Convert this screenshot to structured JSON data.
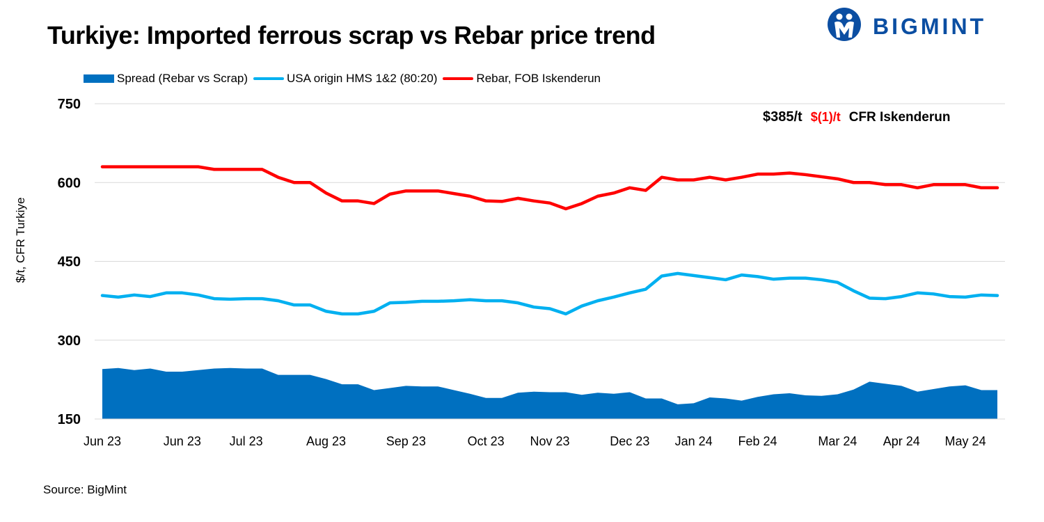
{
  "title": "Turkiye: Imported ferrous scrap vs Rebar price trend",
  "brand": {
    "name": "BIGMINT",
    "color": "#0b4ea2",
    "icon": "people-logo-icon"
  },
  "annotation": {
    "price": "$385/t",
    "change": "$(1)/t",
    "location": "CFR Iskenderun"
  },
  "source": "Source: BigMint",
  "colors": {
    "spread": "#0070c0",
    "scrap": "#00b0f0",
    "rebar": "#ff0000",
    "grid": "#d9d9d9"
  },
  "legend": [
    {
      "label": "Spread (Rebar vs Scrap)",
      "color": "#0070c0",
      "kind": "box"
    },
    {
      "label": "USA origin HMS 1&2 (80:20)",
      "color": "#00b0f0",
      "kind": "line"
    },
    {
      "label": "Rebar, FOB Iskenderun",
      "color": "#ff0000",
      "kind": "line"
    }
  ],
  "chart_data": {
    "type": "line",
    "title": "Turkiye: Imported ferrous scrap vs Rebar price trend",
    "ylabel": "$/t, CFR Turkiye",
    "xlabel": "",
    "ylim": [
      150,
      750
    ],
    "yticks": [
      150,
      300,
      450,
      600,
      750
    ],
    "grid": true,
    "legend_position": "top",
    "x_tick_labels": [
      {
        "index": 0,
        "label": "Jun 23"
      },
      {
        "index": 5,
        "label": "Jun 23"
      },
      {
        "index": 9,
        "label": "Jul 23"
      },
      {
        "index": 14,
        "label": "Aug 23"
      },
      {
        "index": 19,
        "label": "Sep 23"
      },
      {
        "index": 24,
        "label": "Oct 23"
      },
      {
        "index": 28,
        "label": "Nov 23"
      },
      {
        "index": 33,
        "label": "Dec 23"
      },
      {
        "index": 37,
        "label": "Jan 24"
      },
      {
        "index": 41,
        "label": "Feb 24"
      },
      {
        "index": 46,
        "label": "Mar 24"
      },
      {
        "index": 50,
        "label": "Apr 24"
      },
      {
        "index": 54,
        "label": "May 24"
      }
    ],
    "series": [
      {
        "name": "Spread (Rebar vs Scrap)",
        "type": "area",
        "values": [
          245,
          247,
          243,
          246,
          240,
          240,
          243,
          246,
          247,
          246,
          246,
          234,
          234,
          234,
          226,
          216,
          216,
          205,
          209,
          213,
          212,
          212,
          205,
          198,
          190,
          190,
          200,
          202,
          201,
          201,
          196,
          200,
          198,
          201,
          189,
          189,
          178,
          180,
          191,
          189,
          185,
          192,
          197,
          199,
          195,
          194,
          197,
          206,
          221,
          217,
          213,
          202,
          207,
          212,
          214,
          205,
          205
        ]
      },
      {
        "name": "USA origin HMS 1&2 (80:20)",
        "type": "line",
        "values": [
          385,
          382,
          386,
          383,
          390,
          390,
          386,
          379,
          378,
          379,
          379,
          375,
          367,
          367,
          355,
          350,
          350,
          355,
          371,
          372,
          374,
          374,
          375,
          377,
          375,
          375,
          371,
          363,
          360,
          350,
          365,
          375,
          382,
          390,
          397,
          422,
          427,
          423,
          419,
          415,
          424,
          421,
          416,
          418,
          418,
          415,
          410,
          394,
          380,
          379,
          383,
          390,
          388,
          383,
          382,
          386,
          385
        ]
      },
      {
        "name": "Rebar, FOB Iskenderun",
        "type": "line",
        "values": [
          630,
          630,
          630,
          630,
          630,
          630,
          630,
          625,
          625,
          625,
          625,
          610,
          600,
          600,
          580,
          565,
          565,
          560,
          578,
          584,
          584,
          584,
          579,
          574,
          565,
          564,
          570,
          565,
          561,
          550,
          560,
          574,
          580,
          590,
          585,
          610,
          605,
          605,
          610,
          605,
          610,
          616,
          616,
          618,
          615,
          611,
          607,
          600,
          600,
          596,
          596,
          590,
          596,
          596,
          596,
          590,
          590
        ]
      }
    ]
  }
}
